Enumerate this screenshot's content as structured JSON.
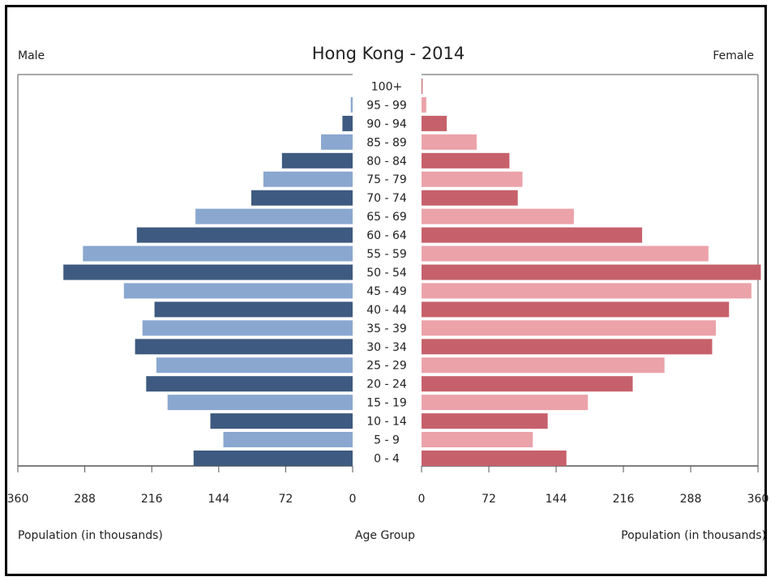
{
  "chart_data": {
    "type": "bar",
    "title": "Hong Kong - 2014",
    "left_label": "Male",
    "right_label": "Female",
    "center_label": "Age Group",
    "xlabel_left": "Population (in thousands)",
    "xlabel_right": "Population (in thousands)",
    "xlim": [
      0,
      360
    ],
    "xticks_left": [
      "360",
      "288",
      "216",
      "144",
      "72",
      "0"
    ],
    "xticks_right": [
      "0",
      "72",
      "144",
      "216",
      "288",
      "360"
    ],
    "categories": [
      "100+",
      "95 - 99",
      "90 - 94",
      "85 - 89",
      "80 - 84",
      "75 - 79",
      "70 - 74",
      "65 - 69",
      "60 - 64",
      "55 - 59",
      "50 - 54",
      "45 - 49",
      "40 - 44",
      "35 - 39",
      "30 - 34",
      "25 - 29",
      "20 - 24",
      "15 - 19",
      "10 - 14",
      "5 - 9",
      "0 - 4"
    ],
    "series": [
      {
        "name": "Male",
        "values": [
          0,
          2,
          11,
          34,
          76,
          96,
          109,
          169,
          232,
          290,
          311,
          246,
          213,
          226,
          234,
          211,
          222,
          199,
          153,
          139,
          171
        ]
      },
      {
        "name": "Female",
        "values": [
          1,
          5,
          27,
          59,
          94,
          108,
          103,
          163,
          236,
          307,
          363,
          353,
          329,
          315,
          311,
          260,
          226,
          178,
          135,
          119,
          155
        ]
      }
    ],
    "colors": {
      "male_dark": "#3e5a80",
      "male_light": "#8aa7d0",
      "female_dark": "#c6616b",
      "female_light": "#eba2a9"
    },
    "grid": false,
    "legend": "none"
  }
}
